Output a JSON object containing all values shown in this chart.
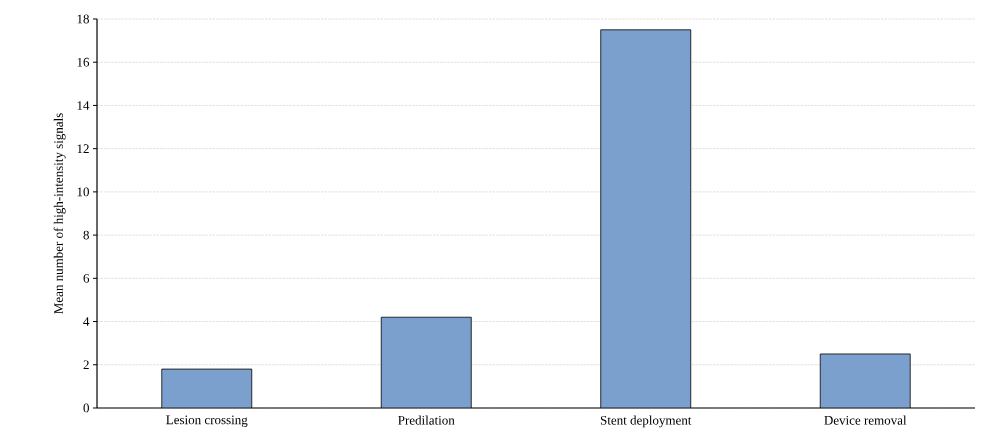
{
  "chart_data": {
    "type": "bar",
    "ylabel": "Mean number of high-intensity signals",
    "categories": [
      "Lesion crossing",
      "Predilation",
      "Stent deployment",
      "Device removal"
    ],
    "values": [
      1.8,
      4.2,
      17.5,
      2.5
    ],
    "color": "#7ba0cd",
    "ylim": [
      0,
      18
    ],
    "yticks": [
      0,
      2,
      4,
      6,
      8,
      10,
      12,
      14,
      16,
      18
    ],
    "grid": "y"
  }
}
